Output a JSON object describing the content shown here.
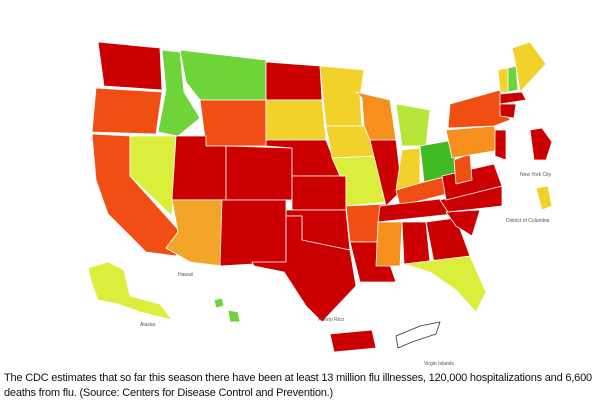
{
  "map": {
    "labels": {
      "new_york_city": "New York City",
      "district_of_columbia": "District of Columbia",
      "hawaii": "Hawaii",
      "alaska": "Alaska",
      "puerto_rico": "Puerto Rico",
      "virgin_islands": "Virgin Islands"
    }
  },
  "caption": "The CDC estimates that so far this season there have been at least 13 million flu illnesses, 120,000 hospitalizations and 6,600 deaths from flu. (Source: Centers for Disease Control and Prevention.)"
}
